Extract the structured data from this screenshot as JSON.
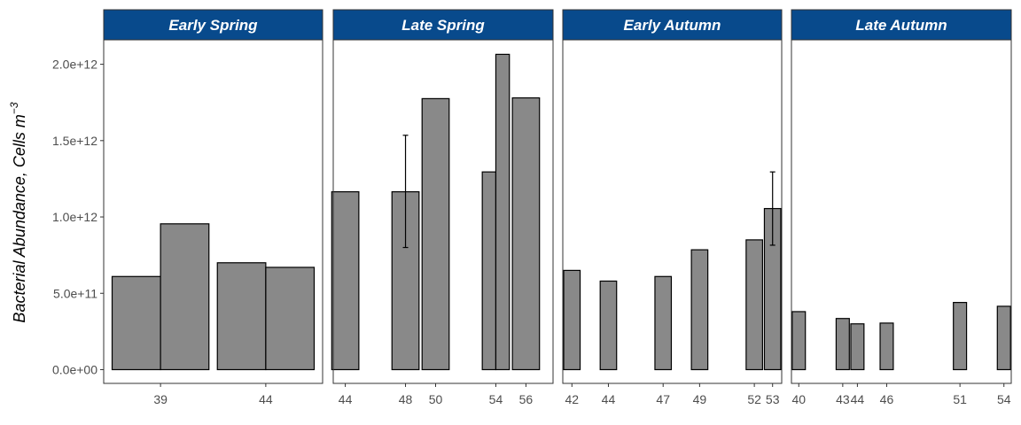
{
  "chart_data": {
    "type": "bar",
    "ylabel": "Bacterial Abundance, Cells m",
    "ylabel_superscript": "−3",
    "ylim": [
      -90000000000,
      2160000000000
    ],
    "y_ticks": [
      0,
      500000000000,
      1000000000000,
      1500000000000,
      2000000000000
    ],
    "y_tick_labels": [
      "0.0e+00",
      "5.0e+11",
      "1.0e+12",
      "1.5e+12",
      "2.0e+12"
    ],
    "bar_color": "#898989",
    "strip_color": "#084a8c",
    "panels": [
      {
        "title": "Early Spring",
        "xlim": [
          36.3,
          46.7
        ],
        "x_ticks": [
          39,
          44
        ],
        "bars": [
          {
            "x": 37.85,
            "width": 2.3,
            "value": 610000000000
          },
          {
            "x": 40.15,
            "width": 2.3,
            "value": 955000000000
          },
          {
            "x": 42.85,
            "width": 2.3,
            "value": 700000000000
          },
          {
            "x": 45.15,
            "width": 2.3,
            "value": 670000000000
          }
        ]
      },
      {
        "title": "Late Spring",
        "xlim": [
          43.2,
          57.8
        ],
        "x_ticks": [
          44,
          48,
          50,
          54,
          56
        ],
        "bars": [
          {
            "x": 44,
            "width": 1.8,
            "value": 1165000000000
          },
          {
            "x": 48,
            "width": 1.8,
            "value": 1165000000000,
            "err_low": 800000000000,
            "err_high": 1535000000000
          },
          {
            "x": 50,
            "width": 1.8,
            "value": 1775000000000
          },
          {
            "x": 53.55,
            "width": 0.9,
            "value": 1295000000000
          },
          {
            "x": 54.45,
            "width": 0.9,
            "value": 2065000000000
          },
          {
            "x": 56,
            "width": 1.8,
            "value": 1780000000000
          }
        ]
      },
      {
        "title": "Early Autumn",
        "xlim": [
          41.5,
          53.5
        ],
        "x_ticks": [
          42,
          44,
          47,
          49,
          52,
          53
        ],
        "bars": [
          {
            "x": 42,
            "width": 0.9,
            "value": 650000000000
          },
          {
            "x": 44,
            "width": 0.9,
            "value": 580000000000
          },
          {
            "x": 47,
            "width": 0.9,
            "value": 610000000000
          },
          {
            "x": 49,
            "width": 0.9,
            "value": 785000000000
          },
          {
            "x": 52,
            "width": 0.9,
            "value": 850000000000
          },
          {
            "x": 53,
            "width": 0.9,
            "value": 1055000000000,
            "err_low": 815000000000,
            "err_high": 1295000000000
          }
        ]
      },
      {
        "title": "Late Autumn",
        "xlim": [
          39.5,
          54.5
        ],
        "x_ticks": [
          40,
          43,
          44,
          46,
          51,
          54
        ],
        "bars": [
          {
            "x": 40,
            "width": 0.9,
            "value": 380000000000
          },
          {
            "x": 43,
            "width": 0.9,
            "value": 335000000000
          },
          {
            "x": 44,
            "width": 0.9,
            "value": 300000000000
          },
          {
            "x": 46,
            "width": 0.9,
            "value": 305000000000
          },
          {
            "x": 51,
            "width": 0.9,
            "value": 440000000000
          },
          {
            "x": 54,
            "width": 0.9,
            "value": 415000000000
          }
        ]
      }
    ]
  }
}
